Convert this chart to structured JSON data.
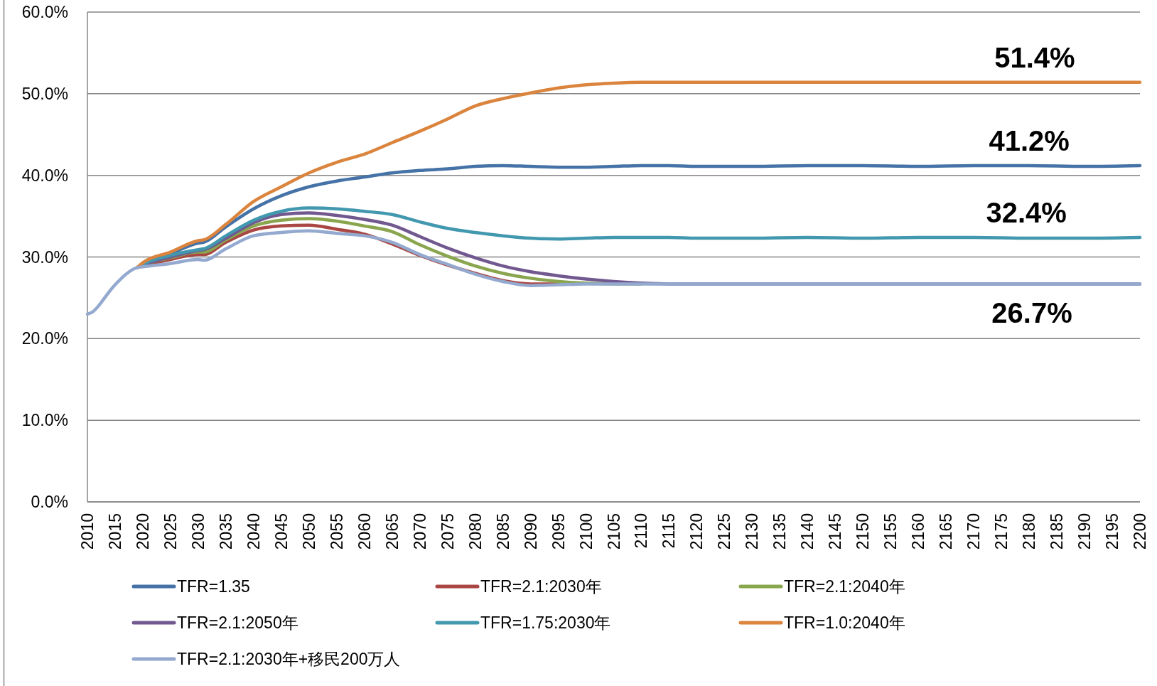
{
  "chart_data": {
    "type": "line",
    "x": [
      2010,
      2011,
      2012,
      2013,
      2014,
      2015,
      2016,
      2017,
      2018,
      2019,
      2020,
      2025,
      2030,
      2031,
      2035,
      2040,
      2045,
      2050,
      2055,
      2060,
      2065,
      2070,
      2075,
      2080,
      2085,
      2090,
      2095,
      2100,
      2105,
      2110,
      2115,
      2120,
      2130,
      2140,
      2150,
      2160,
      2170,
      2180,
      2190,
      2200
    ],
    "xlim": [
      2010,
      2200
    ],
    "xticks": [
      2010,
      2015,
      2020,
      2025,
      2030,
      2035,
      2040,
      2045,
      2050,
      2055,
      2060,
      2065,
      2070,
      2075,
      2080,
      2085,
      2090,
      2095,
      2100,
      2105,
      2110,
      2115,
      2120,
      2125,
      2130,
      2135,
      2140,
      2145,
      2150,
      2155,
      2160,
      2165,
      2170,
      2175,
      2180,
      2185,
      2190,
      2195,
      2200
    ],
    "ylim": [
      0,
      60
    ],
    "yticks": [
      {
        "value": 0,
        "label": "0.0%"
      },
      {
        "value": 10,
        "label": "10.0%"
      },
      {
        "value": 20,
        "label": "20.0%"
      },
      {
        "value": 30,
        "label": "30.0%"
      },
      {
        "value": 40,
        "label": "40.0%"
      },
      {
        "value": 50,
        "label": "50.0%"
      },
      {
        "value": 60,
        "label": "60.0%"
      }
    ],
    "grid": "y",
    "legend": "bottom",
    "series": [
      {
        "name": "TFR=1.35",
        "color": "#4572a7",
        "values": [
          null,
          null,
          null,
          null,
          null,
          null,
          null,
          null,
          null,
          28.7,
          29.2,
          30.4,
          31.7,
          31.8,
          33.7,
          35.9,
          37.5,
          38.6,
          39.3,
          39.8,
          40.3,
          40.6,
          40.8,
          41.1,
          41.2,
          41.1,
          41.0,
          41.0,
          41.1,
          41.2,
          41.2,
          41.1,
          41.1,
          41.2,
          41.2,
          41.1,
          41.2,
          41.2,
          41.1,
          41.2
        ]
      },
      {
        "name": "TFR=2.1:2030年",
        "color": "#aa4643",
        "values": [
          null,
          null,
          null,
          null,
          null,
          null,
          null,
          null,
          null,
          28.7,
          28.9,
          29.7,
          30.3,
          30.3,
          31.8,
          33.3,
          33.8,
          33.9,
          33.4,
          32.8,
          31.6,
          30.2,
          29.0,
          28.0,
          27.1,
          26.7,
          26.7,
          null,
          null,
          null,
          null,
          null,
          null,
          null,
          null,
          null,
          null,
          null,
          null,
          null
        ]
      },
      {
        "name": "TFR=2.1:2040年",
        "color": "#89a54e",
        "values": [
          null,
          null,
          null,
          null,
          null,
          null,
          null,
          null,
          null,
          28.7,
          29.0,
          29.9,
          30.6,
          30.6,
          32.1,
          33.8,
          34.5,
          34.7,
          34.4,
          33.8,
          33.1,
          31.5,
          30.1,
          28.9,
          28.0,
          27.4,
          27.0,
          26.8,
          26.7,
          26.7,
          null,
          null,
          null,
          null,
          null,
          null,
          null,
          null,
          null,
          null
        ]
      },
      {
        "name": "TFR=2.1:2050年",
        "color": "#71588f",
        "values": [
          null,
          null,
          null,
          null,
          null,
          null,
          null,
          null,
          null,
          28.7,
          29.0,
          30.0,
          30.8,
          30.9,
          32.3,
          34.2,
          35.2,
          35.4,
          35.1,
          34.6,
          33.9,
          32.5,
          31.1,
          29.9,
          28.9,
          28.2,
          27.7,
          27.3,
          27.0,
          26.8,
          26.7,
          26.7,
          26.7,
          26.7,
          26.7,
          26.7,
          26.7,
          26.7,
          26.7,
          26.7
        ]
      },
      {
        "name": "TFR=1.75:2030年",
        "color": "#4198af",
        "values": [
          null,
          null,
          null,
          null,
          null,
          null,
          null,
          null,
          null,
          28.7,
          29.1,
          30.2,
          30.9,
          31.0,
          32.6,
          34.5,
          35.6,
          36.0,
          35.9,
          35.6,
          35.2,
          34.3,
          33.5,
          33.0,
          32.6,
          32.3,
          32.2,
          32.3,
          32.4,
          32.4,
          32.4,
          32.3,
          32.3,
          32.4,
          32.3,
          32.4,
          32.4,
          32.3,
          32.3,
          32.4
        ]
      },
      {
        "name": "TFR=1.0:2040年",
        "color": "#db843d",
        "values": [
          null,
          null,
          null,
          null,
          null,
          null,
          null,
          null,
          null,
          28.7,
          29.3,
          30.6,
          32.0,
          32.1,
          34.0,
          36.8,
          38.6,
          40.3,
          41.6,
          42.6,
          44.0,
          45.4,
          46.9,
          48.5,
          49.4,
          50.1,
          50.7,
          51.1,
          51.3,
          51.4,
          51.4,
          51.4,
          51.4,
          51.4,
          51.4,
          51.4,
          51.4,
          51.4,
          51.4,
          51.4
        ]
      },
      {
        "name": "TFR=2.1:2030年+移民200万人",
        "color": "#93a9cf",
        "values": [
          23.0,
          23.3,
          24.0,
          24.9,
          25.8,
          26.6,
          27.3,
          27.9,
          28.4,
          28.7,
          28.8,
          29.2,
          29.7,
          29.6,
          31.0,
          32.6,
          33.0,
          33.2,
          32.9,
          32.6,
          31.8,
          30.3,
          29.1,
          27.9,
          27.0,
          26.5,
          26.6,
          26.7,
          26.7,
          26.7,
          26.7,
          26.7,
          26.7,
          26.7,
          26.7,
          26.7,
          26.7,
          26.7,
          26.7,
          26.7
        ]
      }
    ],
    "annotations": [
      {
        "text": "51.4%",
        "x": 2181,
        "y": 51.4
      },
      {
        "text": "41.2%",
        "x": 2180,
        "y": 41.2
      },
      {
        "text": "32.4%",
        "x": 2179.5,
        "y": 32.4
      },
      {
        "text": "26.7%",
        "x": 2180.5,
        "y": 26.7
      }
    ]
  }
}
